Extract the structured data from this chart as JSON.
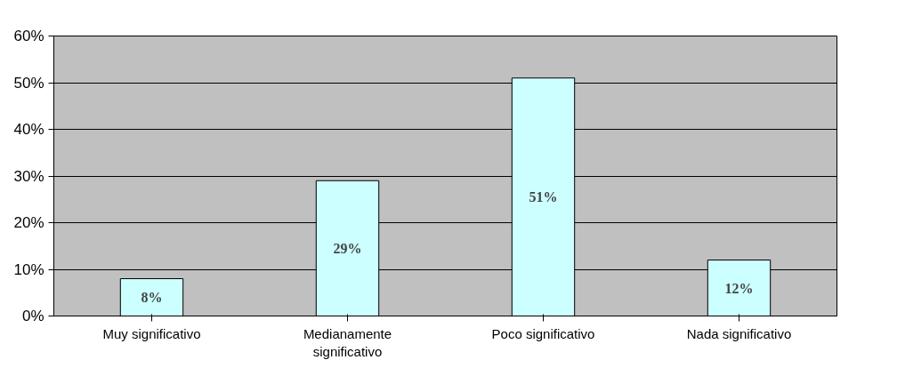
{
  "chart_data": {
    "type": "bar",
    "categories": [
      "Muy significativo",
      "Medianamente significativo",
      "Poco significativo",
      "Nada significativo"
    ],
    "values": [
      8,
      29,
      51,
      12
    ],
    "value_labels": [
      "8%",
      "29%",
      "51%",
      "12%"
    ],
    "color": "#ccffff",
    "ylim": [
      0,
      60
    ],
    "yticks": [
      {
        "value": 0,
        "label": "0%"
      },
      {
        "value": 10,
        "label": "10%"
      },
      {
        "value": 20,
        "label": "20%"
      },
      {
        "value": 30,
        "label": "30%"
      },
      {
        "value": 40,
        "label": "40%"
      },
      {
        "value": 50,
        "label": "50%"
      },
      {
        "value": 60,
        "label": "60%"
      }
    ],
    "grid": "y"
  }
}
